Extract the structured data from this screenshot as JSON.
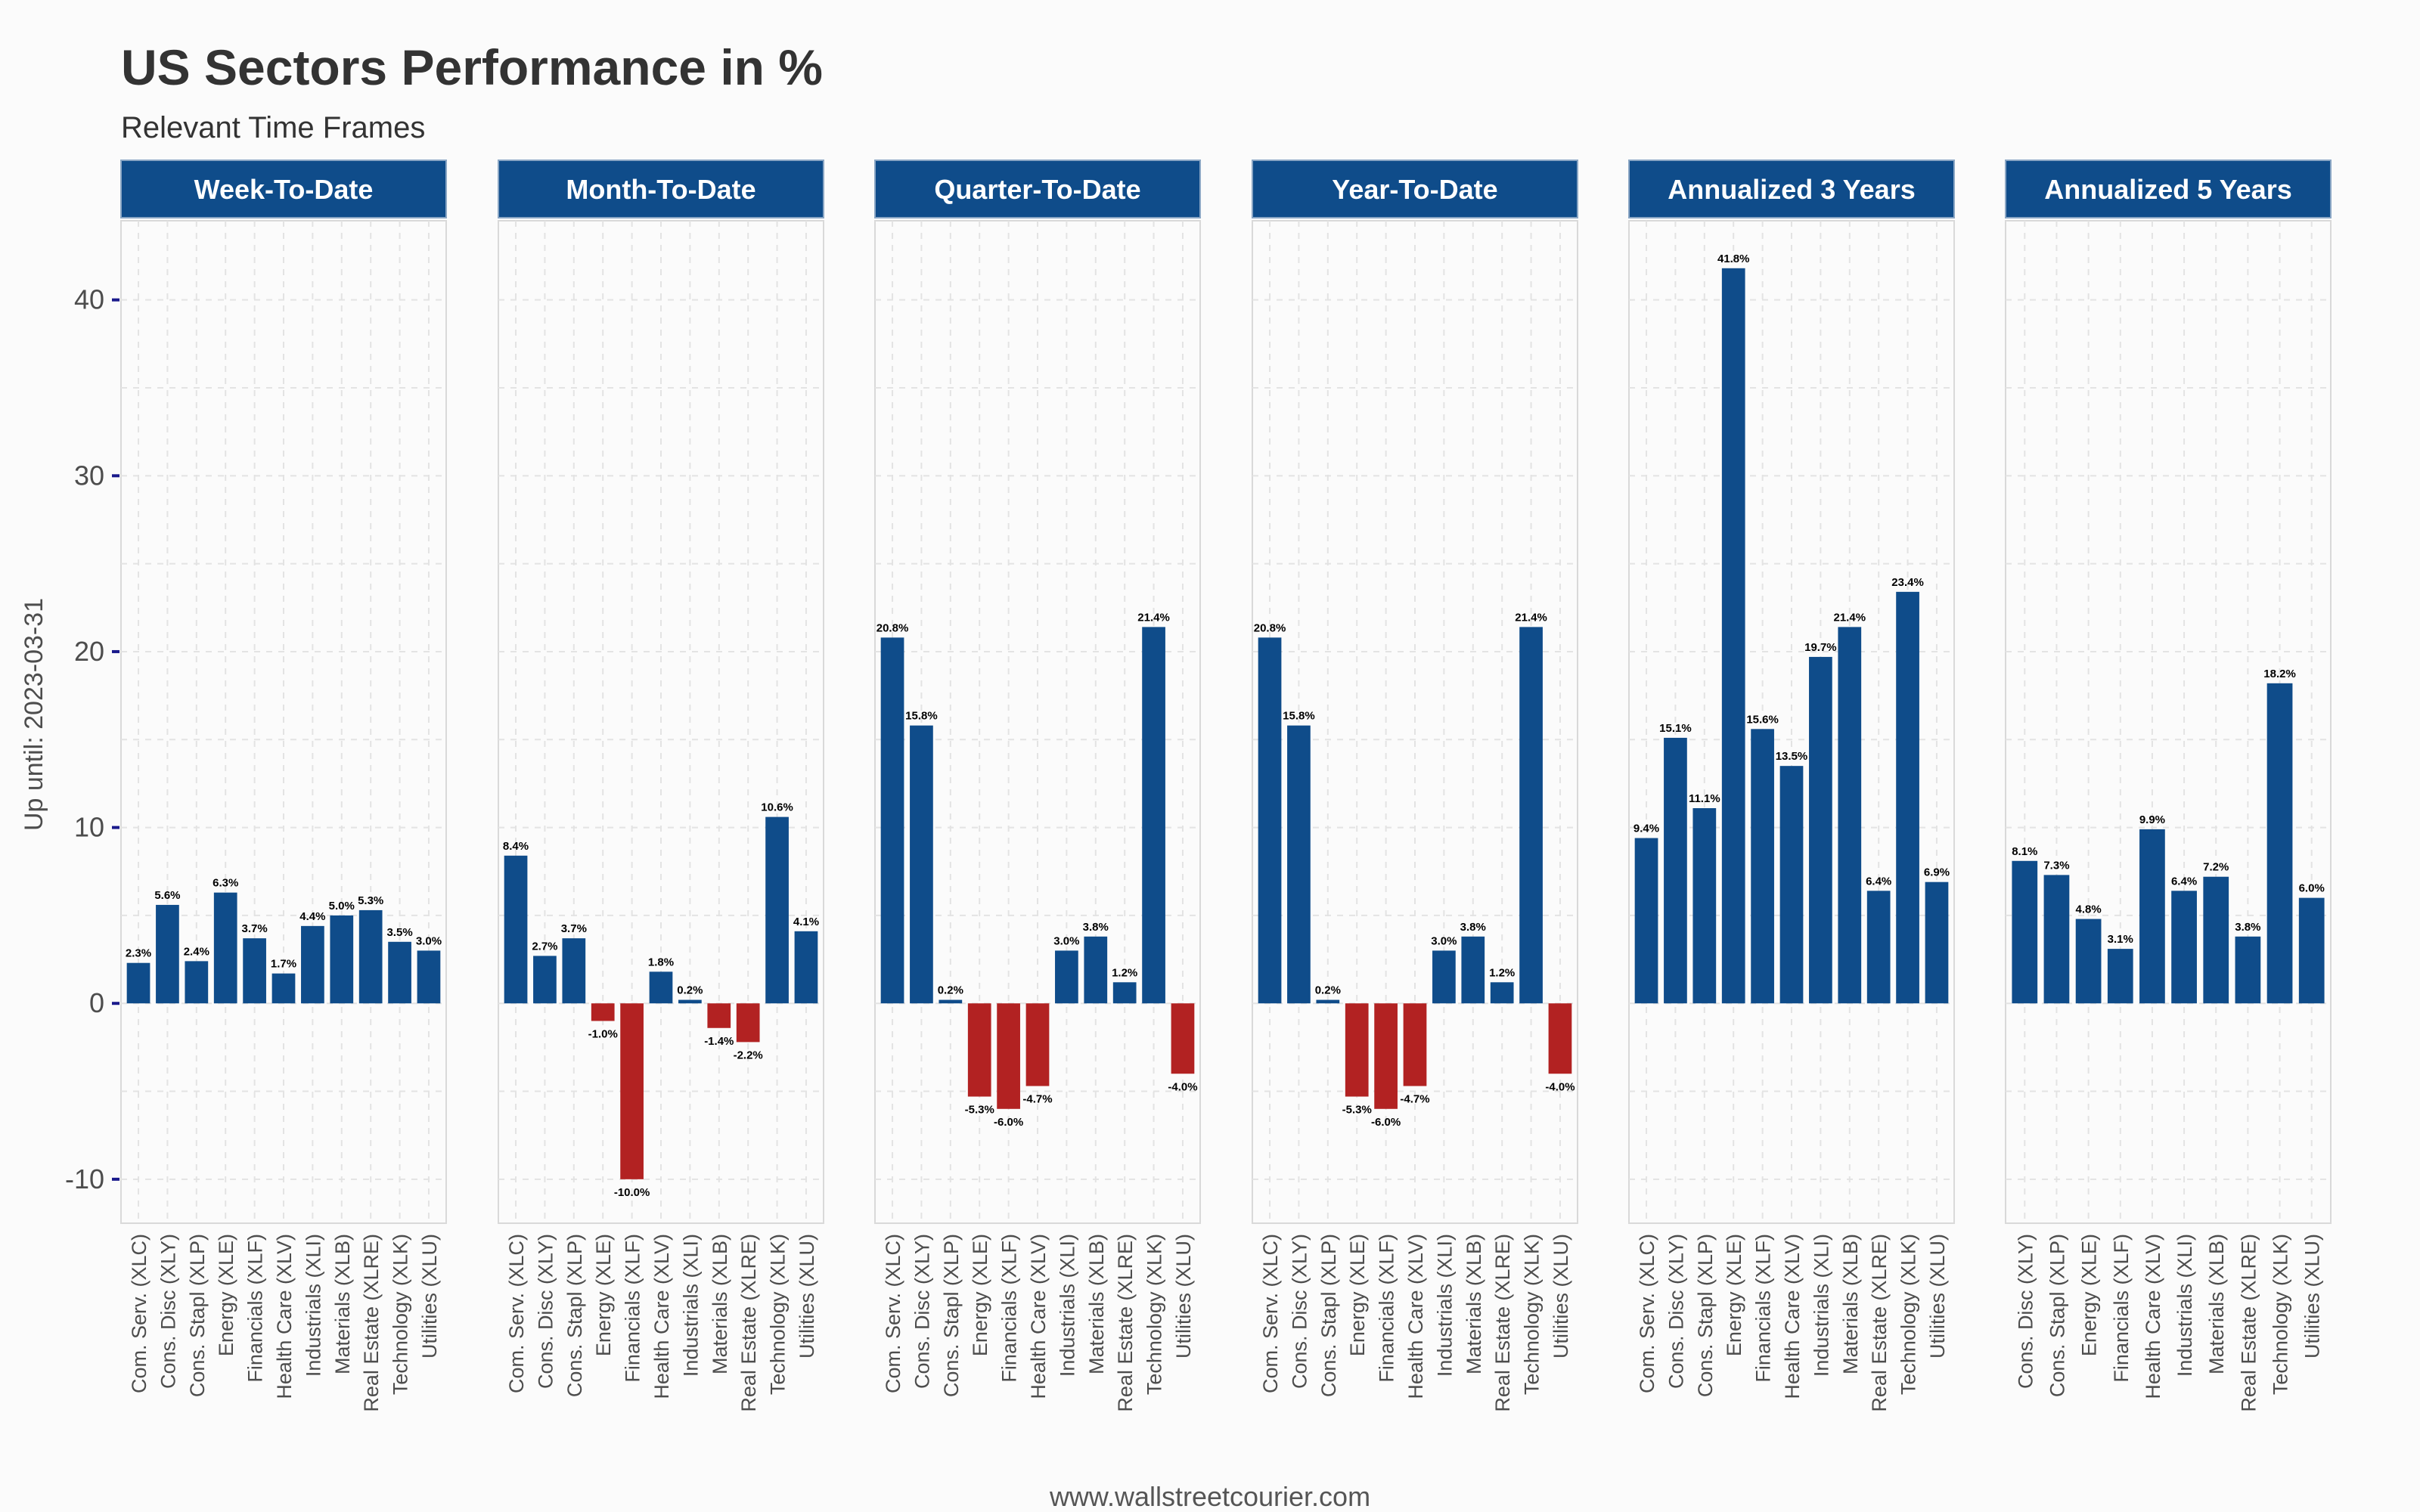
{
  "chart_data": {
    "type": "bar",
    "title": "US Sectors Performance in %",
    "subtitle": "Relevant Time Frames",
    "ylabel": "Up until: 2023-03-31",
    "ylim": [
      -12.5,
      44.5
    ],
    "yticks": [
      -10,
      0,
      10,
      20,
      30,
      40
    ],
    "grid": true,
    "caption": "www.wallstreetcourier.com",
    "colors": {
      "positive": "#0f4c8a",
      "negative": "#b22222",
      "strip": "#0f4c8a"
    },
    "panels": [
      {
        "title": "Week-To-Date",
        "categories": [
          "Com. Serv. (XLC)",
          "Cons. Disc (XLY)",
          "Cons. Stapl (XLP)",
          "Energy (XLE)",
          "Financials (XLF)",
          "Health Care (XLV)",
          "Industrials (XLI)",
          "Materials (XLB)",
          "Real Estate (XLRE)",
          "Technology (XLK)",
          "Utilities (XLU)"
        ],
        "values": [
          2.3,
          5.6,
          2.4,
          6.3,
          3.7,
          1.7,
          4.4,
          5.0,
          5.3,
          3.5,
          3.0
        ],
        "labels": [
          "2.3%",
          "5.6%",
          "2.4%",
          "6.3%",
          "3.7%",
          "1.7%",
          "4.4%",
          "5.0%",
          "5.3%",
          "3.5%",
          "3.0%"
        ]
      },
      {
        "title": "Month-To-Date",
        "categories": [
          "Com. Serv. (XLC)",
          "Cons. Disc (XLY)",
          "Cons. Stapl (XLP)",
          "Energy (XLE)",
          "Financials (XLF)",
          "Health Care (XLV)",
          "Industrials (XLI)",
          "Materials (XLB)",
          "Real Estate (XLRE)",
          "Technology (XLK)",
          "Utilities (XLU)"
        ],
        "values": [
          8.4,
          2.7,
          3.7,
          -1.0,
          -10.0,
          1.8,
          0.2,
          -1.4,
          -2.2,
          10.6,
          4.1
        ],
        "labels": [
          "8.4%",
          "2.7%",
          "3.7%",
          "-1.0%",
          "-10.0%",
          "1.8%",
          "0.2%",
          "-1.4%",
          "-2.2%",
          "10.6%",
          "4.1%"
        ]
      },
      {
        "title": "Quarter-To-Date",
        "categories": [
          "Com. Serv. (XLC)",
          "Cons. Disc (XLY)",
          "Cons. Stapl (XLP)",
          "Energy (XLE)",
          "Financials (XLF)",
          "Health Care (XLV)",
          "Industrials (XLI)",
          "Materials (XLB)",
          "Real Estate (XLRE)",
          "Technology (XLK)",
          "Utilities (XLU)"
        ],
        "values": [
          20.8,
          15.8,
          0.2,
          -5.3,
          -6.0,
          -4.7,
          3.0,
          3.8,
          1.2,
          21.4,
          -4.0
        ],
        "labels": [
          "20.8%",
          "15.8%",
          "0.2%",
          "-5.3%",
          "-6.0%",
          "-4.7%",
          "3.0%",
          "3.8%",
          "1.2%",
          "21.4%",
          "-4.0%"
        ]
      },
      {
        "title": "Year-To-Date",
        "categories": [
          "Com. Serv. (XLC)",
          "Cons. Disc (XLY)",
          "Cons. Stapl (XLP)",
          "Energy (XLE)",
          "Financials (XLF)",
          "Health Care (XLV)",
          "Industrials (XLI)",
          "Materials (XLB)",
          "Real Estate (XLRE)",
          "Technology (XLK)",
          "Utilities (XLU)"
        ],
        "values": [
          20.8,
          15.8,
          0.2,
          -5.3,
          -6.0,
          -4.7,
          3.0,
          3.8,
          1.2,
          21.4,
          -4.0
        ],
        "labels": [
          "20.8%",
          "15.8%",
          "0.2%",
          "-5.3%",
          "-6.0%",
          "-4.7%",
          "3.0%",
          "3.8%",
          "1.2%",
          "21.4%",
          "-4.0%"
        ]
      },
      {
        "title": "Annualized 3 Years",
        "categories": [
          "Com. Serv. (XLC)",
          "Cons. Disc (XLY)",
          "Cons. Stapl (XLP)",
          "Energy (XLE)",
          "Financials (XLF)",
          "Health Care (XLV)",
          "Industrials (XLI)",
          "Materials (XLB)",
          "Real Estate (XLRE)",
          "Technology (XLK)",
          "Utilities (XLU)"
        ],
        "values": [
          9.4,
          15.1,
          11.1,
          41.8,
          15.6,
          13.5,
          19.7,
          21.4,
          6.4,
          23.4,
          6.9
        ],
        "labels": [
          "9.4%",
          "15.1%",
          "11.1%",
          "41.8%",
          "15.6%",
          "13.5%",
          "19.7%",
          "21.4%",
          "6.4%",
          "23.4%",
          "6.9%"
        ]
      },
      {
        "title": "Annualized 5 Years",
        "categories": [
          "Cons. Disc (XLY)",
          "Cons. Stapl (XLP)",
          "Energy (XLE)",
          "Financials (XLF)",
          "Health Care (XLV)",
          "Industrials (XLI)",
          "Materials (XLB)",
          "Real Estate (XLRE)",
          "Technology (XLK)",
          "Utilities (XLU)"
        ],
        "values": [
          8.1,
          7.3,
          4.8,
          3.1,
          9.9,
          6.4,
          7.2,
          3.8,
          18.2,
          6.0
        ],
        "labels": [
          "8.1%",
          "7.3%",
          "4.8%",
          "3.1%",
          "9.9%",
          "6.4%",
          "7.2%",
          "3.8%",
          "18.2%",
          "6.0%"
        ]
      }
    ]
  }
}
